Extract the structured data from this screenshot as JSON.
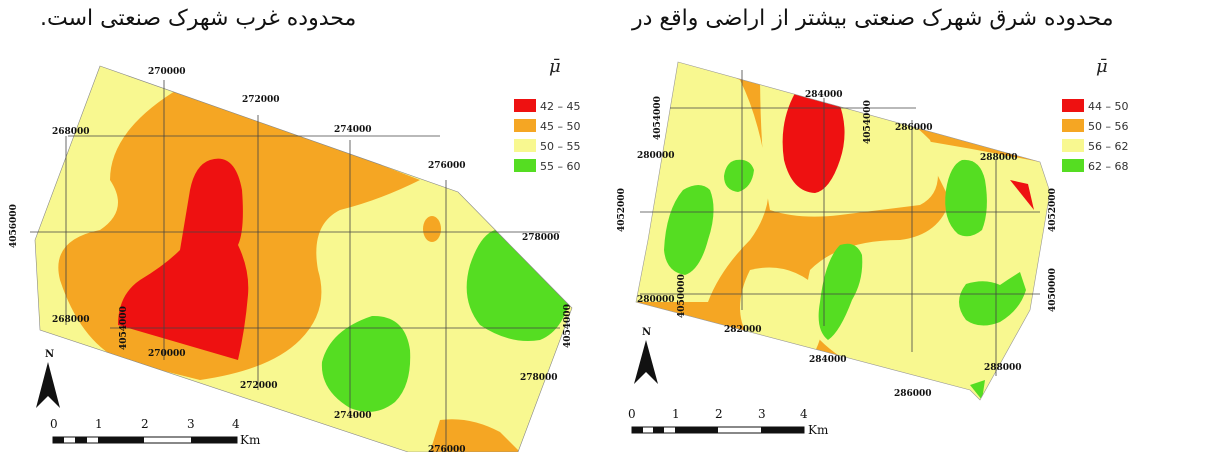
{
  "captions": {
    "left": "محدوده غرب شهرک صنعتی است.",
    "right": "محدوده شرق شهرک صنعتی بیشتر از اراضی واقع در"
  },
  "left_map": {
    "legend_symbol": "μ̄",
    "legend": [
      {
        "label": "42 – 45",
        "color": "#ee1111"
      },
      {
        "label": "45 – 50",
        "color": "#f5a623"
      },
      {
        "label": "50 – 55",
        "color": "#f8f890"
      },
      {
        "label": "55 – 60",
        "color": "#55dd22"
      }
    ],
    "ticks": {
      "t270000": "270000",
      "t272000": "272000",
      "t274000": "274000",
      "t276000": "276000",
      "t268000": "268000",
      "t4056000": "4056000",
      "t278000": "278000",
      "t268000b": "268000",
      "t4054000a": "4054000",
      "t270000b": "270000",
      "t272000b": "272000",
      "t4054000b": "4054000",
      "t278000b": "278000",
      "t274000b": "274000",
      "t276000b": "276000"
    },
    "north": "N",
    "scale": {
      "labels": [
        "0",
        "1",
        "2",
        "3",
        "4"
      ],
      "unit": "Km"
    }
  },
  "right_map": {
    "legend_symbol": "μ̄",
    "legend": [
      {
        "label": "44 – 50",
        "color": "#ee1111"
      },
      {
        "label": "50 – 56",
        "color": "#f5a623"
      },
      {
        "label": "56 – 62",
        "color": "#f8f890"
      },
      {
        "label": "62 – 68",
        "color": "#55dd22"
      }
    ],
    "ticks": {
      "t284000": "284000",
      "t4054000a": "4054000",
      "t4054000b": "4054000",
      "t286000": "286000",
      "t280000": "280000",
      "t288000": "288000",
      "t4052000a": "4052000",
      "t4052000b": "4052000",
      "t280000b": "280000",
      "t4050000a": "4050000",
      "t282000": "282000",
      "t4050000b": "4050000",
      "t284000b": "284000",
      "t288000b": "288000",
      "t286000b": "286000"
    },
    "north": "N",
    "scale": {
      "labels": [
        "0",
        "1",
        "2",
        "3",
        "4"
      ],
      "unit": "Km"
    }
  }
}
